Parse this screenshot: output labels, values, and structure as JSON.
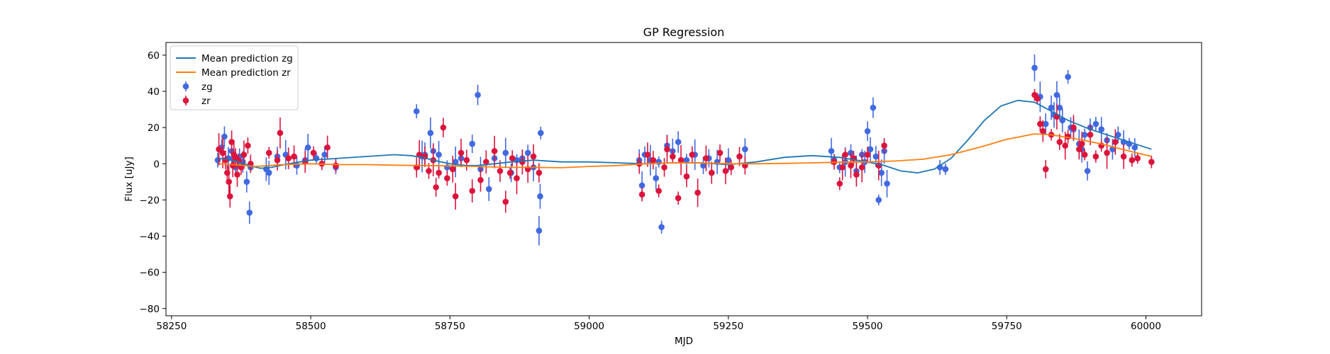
{
  "chart_data": {
    "type": "scatter",
    "title": "GP Regression",
    "xlabel": "MJD",
    "ylabel": "Flux [uJy]",
    "xlim": [
      58240,
      60100
    ],
    "ylim": [
      -84,
      67
    ],
    "xticks": [
      58250,
      58500,
      58750,
      59000,
      59250,
      59500,
      59750,
      60000
    ],
    "yticks": [
      -80,
      -60,
      -40,
      -20,
      0,
      20,
      40,
      60
    ],
    "grid": false,
    "legend": {
      "placement": "top-left",
      "entries": [
        {
          "label": "Mean prediction zg",
          "kind": "line",
          "color": "#1f77b4"
        },
        {
          "label": "Mean prediction zr",
          "kind": "line",
          "color": "#ff7f0e"
        },
        {
          "label": "zg",
          "kind": "errorbar",
          "color": "#4169e1"
        },
        {
          "label": "zr",
          "kind": "errorbar",
          "color": "#dc143c"
        }
      ]
    },
    "lines": [
      {
        "name": "Mean prediction zg",
        "color": "#1f77b4",
        "x": [
          58335,
          58350,
          58370,
          58390,
          58410,
          58430,
          58460,
          58500,
          58550,
          58600,
          58650,
          58680,
          58700,
          58720,
          58750,
          58780,
          58800,
          58830,
          58860,
          58900,
          58950,
          59000,
          59050,
          59100,
          59150,
          59200,
          59250,
          59300,
          59350,
          59400,
          59450,
          59500,
          59530,
          59560,
          59590,
          59620,
          59650,
          59680,
          59710,
          59740,
          59770,
          59800,
          59830,
          59860,
          59900,
          59950,
          60000,
          60010
        ],
        "y": [
          3,
          2.5,
          1,
          -1,
          -2.5,
          -2,
          0,
          2,
          3,
          4,
          5,
          4.5,
          3.5,
          2,
          0,
          -1,
          -1,
          0,
          1,
          2,
          1,
          1,
          0.5,
          0,
          0.5,
          0.5,
          -0.5,
          1,
          3.5,
          4.5,
          3.5,
          1,
          -1,
          -4,
          -5,
          -3,
          3,
          13,
          24,
          32,
          35,
          34,
          29,
          24,
          19,
          14,
          9,
          8
        ]
      },
      {
        "name": "Mean prediction zr",
        "color": "#ff7f0e",
        "x": [
          58335,
          58360,
          58400,
          58450,
          58500,
          58550,
          58600,
          58650,
          58700,
          58750,
          58800,
          58850,
          58900,
          58950,
          59000,
          59050,
          59100,
          59150,
          59200,
          59250,
          59300,
          59350,
          59400,
          59450,
          59500,
          59550,
          59600,
          59650,
          59700,
          59750,
          59800,
          59830,
          59870,
          59920,
          59970,
          60010
        ],
        "y": [
          0,
          -0.5,
          -1.5,
          -0.5,
          0,
          -0.5,
          -0.5,
          -0.8,
          -1,
          -1.2,
          -1.5,
          -2,
          -2,
          -2.2,
          -1.5,
          -1,
          0,
          0.5,
          0.5,
          0,
          0,
          0.2,
          0.5,
          0.8,
          1,
          1.5,
          2.5,
          5,
          9,
          13.5,
          16.5,
          16,
          14,
          11,
          7,
          4
        ]
      }
    ],
    "series": [
      {
        "name": "zg",
        "color": "#4169e1",
        "x": [
          58333,
          58340,
          58345,
          58352,
          58358,
          58365,
          58372,
          58378,
          58385,
          58390,
          58392,
          58420,
          58425,
          58440,
          58455,
          58475,
          58490,
          58495,
          58510,
          58525,
          58545,
          58690,
          58700,
          58705,
          58715,
          58720,
          58730,
          58745,
          58760,
          58770,
          58790,
          58800,
          58805,
          58820,
          58830,
          58850,
          58860,
          58870,
          58880,
          58890,
          58900,
          58910,
          58912,
          58913,
          59090,
          59095,
          59100,
          59110,
          59120,
          59125,
          59130,
          59140,
          59150,
          59160,
          59175,
          59190,
          59205,
          59215,
          59230,
          59250,
          59280,
          59435,
          59440,
          59450,
          59460,
          59470,
          59480,
          59490,
          59495,
          59500,
          59505,
          59510,
          59515,
          59520,
          59525,
          59530,
          59535,
          59630,
          59640,
          59800,
          59810,
          59820,
          59830,
          59835,
          59840,
          59845,
          59850,
          59860,
          59865,
          59870,
          59880,
          59885,
          59890,
          59895,
          59900,
          59910,
          59920,
          59930,
          59940,
          59950,
          59960,
          59970,
          59980
        ],
        "y": [
          2,
          9,
          15,
          3,
          7,
          -2,
          4,
          1,
          -10,
          -27,
          -2,
          -3,
          -5,
          4,
          5,
          -1,
          2,
          9,
          3,
          5,
          -2,
          29,
          4,
          5,
          17,
          7,
          5,
          -2,
          1,
          3,
          11,
          38,
          -3,
          -14,
          3,
          6,
          -5,
          2,
          3,
          6,
          -2,
          -37,
          -18,
          17,
          2,
          -12,
          5,
          2,
          -8,
          1,
          -35,
          10,
          7,
          12,
          2,
          5,
          -1,
          3,
          1,
          2,
          8,
          7,
          2,
          -2,
          1,
          6,
          -4,
          5,
          1,
          18,
          8,
          31,
          4,
          -20,
          -5,
          7,
          -11,
          -2,
          -3,
          53,
          37,
          22,
          31,
          27,
          38,
          31,
          24,
          48,
          20,
          19,
          11,
          8,
          16,
          -4,
          20,
          22,
          19,
          13,
          8,
          16,
          12,
          11,
          9
        ]
      },
      {
        "name": "zr",
        "color": "#dc143c",
        "x": [
          58335,
          58342,
          58347,
          58350,
          58353,
          58355,
          58358,
          58360,
          58362,
          58365,
          58368,
          58370,
          58375,
          58380,
          58387,
          58392,
          58425,
          58440,
          58445,
          58460,
          58470,
          58490,
          58505,
          58520,
          58530,
          58545,
          58690,
          58695,
          58705,
          58712,
          58720,
          58725,
          58730,
          58738,
          58745,
          58755,
          58760,
          58770,
          58780,
          58790,
          58805,
          58815,
          58830,
          58840,
          58850,
          58858,
          58862,
          58870,
          58880,
          58890,
          58900,
          58910,
          59090,
          59095,
          59105,
          59115,
          59125,
          59135,
          59140,
          59150,
          59160,
          59165,
          59175,
          59185,
          59195,
          59210,
          59220,
          59235,
          59245,
          59255,
          59270,
          59280,
          59440,
          59450,
          59455,
          59460,
          59470,
          59475,
          59480,
          59490,
          59500,
          59520,
          59530,
          59800,
          59805,
          59810,
          59815,
          59820,
          59830,
          59840,
          59845,
          59855,
          59860,
          59870,
          59880,
          59885,
          59890,
          59900,
          59910,
          59920,
          59930,
          59945,
          59960,
          59975,
          59985,
          60010
        ],
        "y": [
          8,
          6,
          2,
          -5,
          -10,
          -18,
          12,
          -1,
          5,
          3,
          -6,
          2,
          -2,
          5,
          10,
          0,
          6,
          2,
          17,
          3,
          4,
          1,
          6,
          0,
          9,
          -1,
          -2,
          5,
          4,
          -4,
          2,
          -13,
          -5,
          20,
          -8,
          -3,
          -18,
          6,
          2,
          -15,
          -9,
          1,
          7,
          -4,
          -21,
          -5,
          3,
          -8,
          1,
          -3,
          4,
          -5,
          0,
          -17,
          5,
          2,
          -15,
          -2,
          8,
          4,
          -19,
          2,
          -7,
          5,
          -16,
          3,
          -5,
          6,
          -4,
          -2,
          4,
          -1,
          1,
          -11,
          -2,
          5,
          -1,
          3,
          -6,
          -2,
          5,
          -1,
          10,
          38,
          36,
          22,
          18,
          -3,
          16,
          26,
          12,
          10,
          15,
          20,
          8,
          11,
          5,
          16,
          4,
          10,
          6,
          12,
          4,
          2,
          3,
          1
        ]
      }
    ]
  }
}
